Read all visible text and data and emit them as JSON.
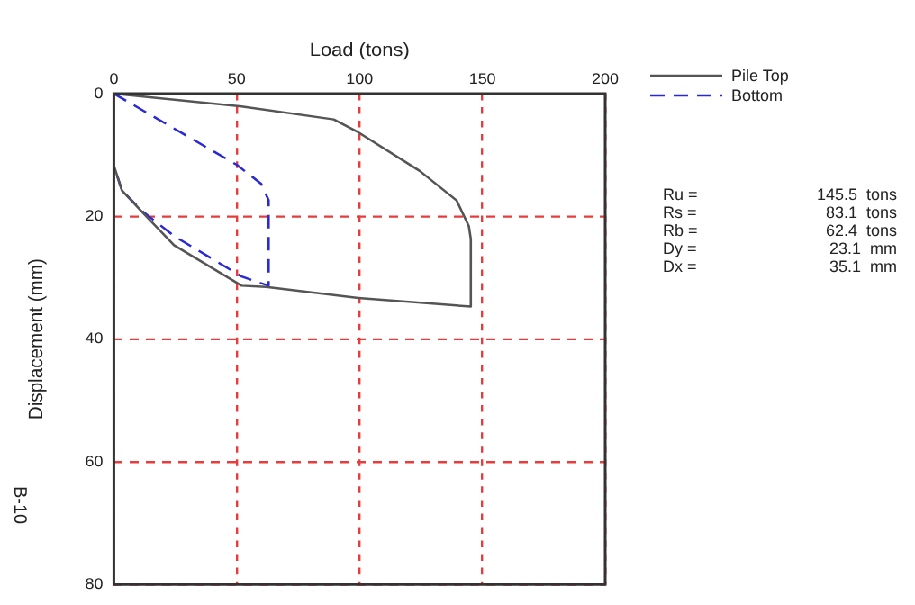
{
  "chart_data": {
    "type": "line",
    "xlabel": "Load (tons)",
    "ylabel": "Displacement (mm)",
    "series": [
      {
        "name": "Pile Top",
        "color": "#555555",
        "line_style": "solid",
        "x": [
          0,
          52,
          89.5,
          99.5,
          124.5,
          139.5,
          144.5,
          145.3,
          145.3,
          99.5,
          62,
          52,
          24.5,
          12,
          3.3,
          0.3
        ],
        "values": [
          0,
          2.1,
          4.2,
          6.3,
          12.6,
          17.4,
          21.6,
          23.7,
          34.7,
          33.3,
          31.5,
          31.3,
          24.7,
          19.5,
          15.8,
          12.1
        ]
      },
      {
        "name": "Bottom",
        "color": "#2a2ad4",
        "line_style": "dashed",
        "x": [
          0,
          50,
          60,
          63,
          63,
          52,
          24.5,
          12,
          3.3,
          0.3
        ],
        "values": [
          0,
          11.6,
          14.7,
          17.4,
          31.3,
          29.8,
          23.2,
          19.3,
          15.8,
          12.1
        ]
      }
    ],
    "xlim": [
      0,
      200
    ],
    "xticks": [
      0,
      50,
      100,
      150,
      200
    ],
    "ylim": [
      80,
      0
    ],
    "yticks": [
      0,
      20,
      40,
      60,
      80
    ],
    "grid": true,
    "legend": "top right",
    "marker": "none",
    "annotations": [
      "Ru =",
      "145.5  tons",
      "Rs =",
      "83.1  tons",
      "Rb =",
      "62.4  tons",
      "Dy =",
      "23.1  mm",
      "Dx =",
      "35.1  mm",
      "B-10"
    ]
  }
}
